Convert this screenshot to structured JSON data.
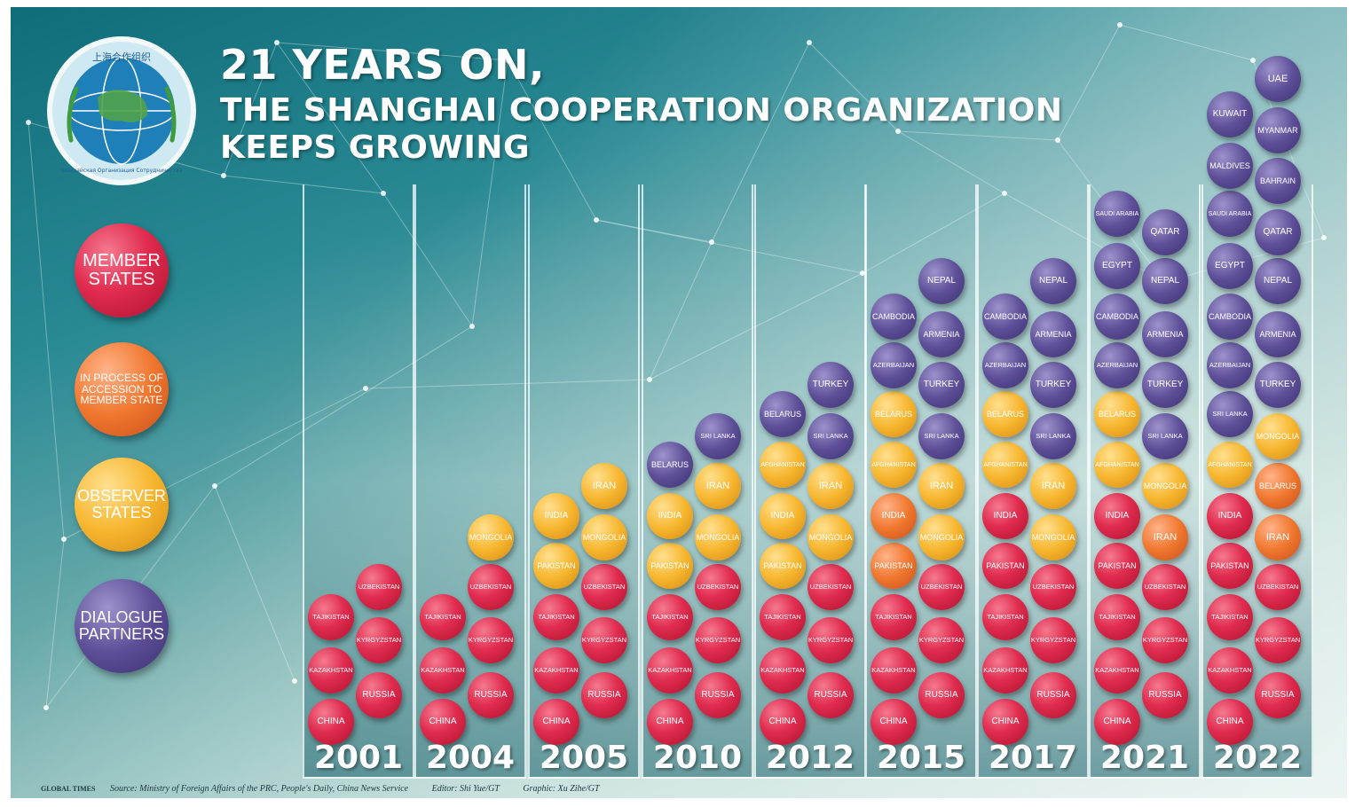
{
  "title": {
    "line1": "21 YEARS ON,",
    "line2": "THE SHANGHAI COOPERATION ORGANIZATION",
    "line3": "KEEPS GROWING"
  },
  "logo": {
    "top_text": "上海合作组织",
    "bottom_text": "Шанхайская Организация Сотрудничества"
  },
  "legend": [
    {
      "key": "m",
      "label": "MEMBER\nSTATES"
    },
    {
      "key": "a",
      "label": "IN PROCESS OF\nACCESSION TO\nMEMBER STATE"
    },
    {
      "key": "o",
      "label": "OBSERVER\nSTATES"
    },
    {
      "key": "d",
      "label": "DIALOGUE\nPARTNERS"
    }
  ],
  "colors": {
    "member": "#e02c4f",
    "accession": "#f0772e",
    "observer": "#f7b62f",
    "dialogue": "#5e4f98"
  },
  "years": [
    {
      "year": "2001",
      "left": [
        [
          "CHINA",
          "m"
        ],
        [
          "KAZAKHSTAN",
          "m"
        ],
        [
          "TAJIKISTAN",
          "m"
        ]
      ],
      "right": [
        [
          "RUSSIA",
          "m"
        ],
        [
          "KYRGYZSTAN",
          "m"
        ],
        [
          "UZBEKISTAN",
          "m"
        ]
      ]
    },
    {
      "year": "2004",
      "left": [
        [
          "CHINA",
          "m"
        ],
        [
          "KAZAKHSTAN",
          "m"
        ],
        [
          "TAJIKISTAN",
          "m"
        ]
      ],
      "right": [
        [
          "RUSSIA",
          "m"
        ],
        [
          "KYRGYZSTAN",
          "m"
        ],
        [
          "UZBEKISTAN",
          "m"
        ],
        [
          "MONGOLIA",
          "o"
        ]
      ]
    },
    {
      "year": "2005",
      "left": [
        [
          "CHINA",
          "m"
        ],
        [
          "KAZAKHSTAN",
          "m"
        ],
        [
          "TAJIKISTAN",
          "m"
        ],
        [
          "PAKISTAN",
          "o"
        ],
        [
          "INDIA",
          "o"
        ]
      ],
      "right": [
        [
          "RUSSIA",
          "m"
        ],
        [
          "KYRGYZSTAN",
          "m"
        ],
        [
          "UZBEKISTAN",
          "m"
        ],
        [
          "MONGOLIA",
          "o"
        ],
        [
          "IRAN",
          "o"
        ]
      ]
    },
    {
      "year": "2010",
      "left": [
        [
          "CHINA",
          "m"
        ],
        [
          "KAZAKHSTAN",
          "m"
        ],
        [
          "TAJIKISTAN",
          "m"
        ],
        [
          "PAKISTAN",
          "o"
        ],
        [
          "INDIA",
          "o"
        ],
        [
          "BELARUS",
          "d"
        ]
      ],
      "right": [
        [
          "RUSSIA",
          "m"
        ],
        [
          "KYRGYZSTAN",
          "m"
        ],
        [
          "UZBEKISTAN",
          "m"
        ],
        [
          "MONGOLIA",
          "o"
        ],
        [
          "IRAN",
          "o"
        ],
        [
          "SRI LANKA",
          "d"
        ]
      ]
    },
    {
      "year": "2012",
      "left": [
        [
          "CHINA",
          "m"
        ],
        [
          "KAZAKHSTAN",
          "m"
        ],
        [
          "TAJIKISTAN",
          "m"
        ],
        [
          "PAKISTAN",
          "o"
        ],
        [
          "INDIA",
          "o"
        ],
        [
          "AFGHANISTAN",
          "o"
        ],
        [
          "BELARUS",
          "d"
        ]
      ],
      "right": [
        [
          "RUSSIA",
          "m"
        ],
        [
          "KYRGYZSTAN",
          "m"
        ],
        [
          "UZBEKISTAN",
          "m"
        ],
        [
          "MONGOLIA",
          "o"
        ],
        [
          "IRAN",
          "o"
        ],
        [
          "SRI LANKA",
          "d"
        ],
        [
          "TURKEY",
          "d"
        ]
      ]
    },
    {
      "year": "2015",
      "left": [
        [
          "CHINA",
          "m"
        ],
        [
          "KAZAKHSTAN",
          "m"
        ],
        [
          "TAJIKISTAN",
          "m"
        ],
        [
          "PAKISTAN",
          "a"
        ],
        [
          "INDIA",
          "a"
        ],
        [
          "AFGHANISTAN",
          "o"
        ],
        [
          "BELARUS",
          "o"
        ],
        [
          "AZERBAIJAN",
          "d"
        ],
        [
          "CAMBODIA",
          "d"
        ]
      ],
      "right": [
        [
          "RUSSIA",
          "m"
        ],
        [
          "KYRGYZSTAN",
          "m"
        ],
        [
          "UZBEKISTAN",
          "m"
        ],
        [
          "MONGOLIA",
          "o"
        ],
        [
          "IRAN",
          "o"
        ],
        [
          "SRI LANKA",
          "d"
        ],
        [
          "TURKEY",
          "d"
        ],
        [
          "ARMENIA",
          "d"
        ],
        [
          "NEPAL",
          "d"
        ]
      ]
    },
    {
      "year": "2017",
      "left": [
        [
          "CHINA",
          "m"
        ],
        [
          "KAZAKHSTAN",
          "m"
        ],
        [
          "TAJIKISTAN",
          "m"
        ],
        [
          "PAKISTAN",
          "m"
        ],
        [
          "INDIA",
          "m"
        ],
        [
          "AFGHANISTAN",
          "o"
        ],
        [
          "BELARUS",
          "o"
        ],
        [
          "AZERBAIJAN",
          "d"
        ],
        [
          "CAMBODIA",
          "d"
        ]
      ],
      "right": [
        [
          "RUSSIA",
          "m"
        ],
        [
          "KYRGYZSTAN",
          "m"
        ],
        [
          "UZBEKISTAN",
          "m"
        ],
        [
          "MONGOLIA",
          "o"
        ],
        [
          "IRAN",
          "o"
        ],
        [
          "SRI LANKA",
          "d"
        ],
        [
          "TURKEY",
          "d"
        ],
        [
          "ARMENIA",
          "d"
        ],
        [
          "NEPAL",
          "d"
        ]
      ]
    },
    {
      "year": "2021",
      "left": [
        [
          "CHINA",
          "m"
        ],
        [
          "KAZAKHSTAN",
          "m"
        ],
        [
          "TAJIKISTAN",
          "m"
        ],
        [
          "PAKISTAN",
          "m"
        ],
        [
          "INDIA",
          "m"
        ],
        [
          "AFGHANISTAN",
          "o"
        ],
        [
          "BELARUS",
          "o"
        ],
        [
          "AZERBAIJAN",
          "d"
        ],
        [
          "CAMBODIA",
          "d"
        ],
        [
          "EGYPT",
          "d"
        ],
        [
          "SAUDI ARABIA",
          "d"
        ]
      ],
      "right": [
        [
          "RUSSIA",
          "m"
        ],
        [
          "KYRGYZSTAN",
          "m"
        ],
        [
          "UZBEKISTAN",
          "m"
        ],
        [
          "IRAN",
          "a"
        ],
        [
          "MONGOLIA",
          "o"
        ],
        [
          "SRI LANKA",
          "d"
        ],
        [
          "TURKEY",
          "d"
        ],
        [
          "ARMENIA",
          "d"
        ],
        [
          "NEPAL",
          "d"
        ],
        [
          "QATAR",
          "d"
        ]
      ]
    },
    {
      "year": "2022",
      "left": [
        [
          "CHINA",
          "m"
        ],
        [
          "KAZAKHSTAN",
          "m"
        ],
        [
          "TAJIKISTAN",
          "m"
        ],
        [
          "PAKISTAN",
          "m"
        ],
        [
          "INDIA",
          "m"
        ],
        [
          "AFGHANISTAN",
          "o"
        ],
        [
          "SRI LANKA",
          "d"
        ],
        [
          "AZERBAIJAN",
          "d"
        ],
        [
          "CAMBODIA",
          "d"
        ],
        [
          "EGYPT",
          "d"
        ],
        [
          "SAUDI ARABIA",
          "d"
        ],
        [
          "MALDIVES",
          "d"
        ],
        [
          "KUWAIT",
          "d"
        ]
      ],
      "right": [
        [
          "RUSSIA",
          "m"
        ],
        [
          "KYRGYZSTAN",
          "m"
        ],
        [
          "UZBEKISTAN",
          "m"
        ],
        [
          "IRAN",
          "a"
        ],
        [
          "BELARUS",
          "a"
        ],
        [
          "MONGOLIA",
          "o"
        ],
        [
          "TURKEY",
          "d"
        ],
        [
          "ARMENIA",
          "d"
        ],
        [
          "NEPAL",
          "d"
        ],
        [
          "QATAR",
          "d"
        ],
        [
          "BAHRAIN",
          "d"
        ],
        [
          "MYANMAR",
          "d"
        ],
        [
          "UAE",
          "d"
        ]
      ]
    }
  ],
  "footer": {
    "brand": "GLOBAL TIMES",
    "source": "Source: Ministry of Foreign Affairs of the PRC, People's Daily, China News Service",
    "editor": "Editor: Shi Yue/GT",
    "graphic": "Graphic: Xu Zihe/GT"
  }
}
